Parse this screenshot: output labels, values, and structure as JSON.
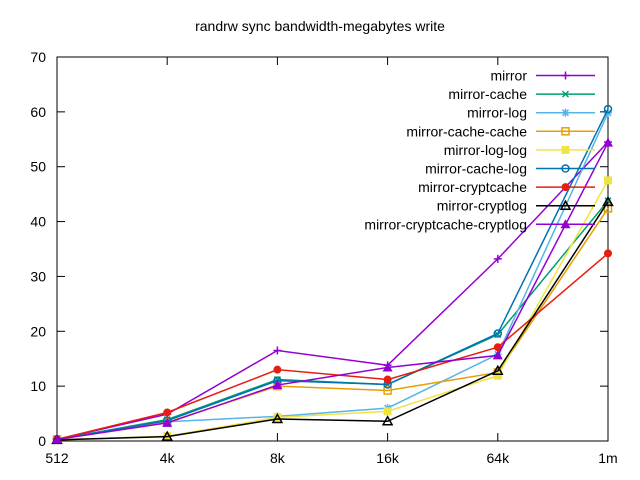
{
  "chart_data": {
    "type": "line",
    "title": "randrw sync bandwidth-megabytes write",
    "xlabel": "",
    "ylabel": "",
    "categories": [
      "512",
      "4k",
      "8k",
      "16k",
      "64k",
      "1m"
    ],
    "yticks": [
      0,
      10,
      20,
      30,
      40,
      50,
      60,
      70
    ],
    "ylim": [
      0,
      70
    ],
    "grid": false,
    "legend_position": "top-right-inside",
    "axis_color": "#000000",
    "background_color": "#ffffff",
    "series": [
      {
        "name": "mirror",
        "color": "#9400d3",
        "marker": "plus",
        "values": [
          0.3,
          4.9,
          16.5,
          13.8,
          33.2,
          54.5
        ]
      },
      {
        "name": "mirror-cache",
        "color": "#009e73",
        "marker": "cross",
        "values": [
          0.3,
          3.9,
          11.2,
          10.3,
          19.4,
          43.8
        ]
      },
      {
        "name": "mirror-log",
        "color": "#56b4e9",
        "marker": "asterisk",
        "values": [
          0.3,
          3.5,
          4.5,
          6.0,
          15.8,
          59.8
        ]
      },
      {
        "name": "mirror-cache-cache",
        "color": "#e69f00",
        "marker": "square-open",
        "values": [
          0.3,
          3.4,
          10.0,
          9.2,
          12.5,
          42.4
        ]
      },
      {
        "name": "mirror-log-log",
        "color": "#f0e442",
        "marker": "square-filled",
        "values": [
          0.2,
          0.9,
          4.3,
          5.4,
          11.9,
          47.5
        ]
      },
      {
        "name": "mirror-cache-log",
        "color": "#0072b2",
        "marker": "circle-open",
        "values": [
          0.3,
          3.7,
          11.0,
          10.3,
          19.6,
          60.5
        ]
      },
      {
        "name": "mirror-cryptcache",
        "color": "#e51e10",
        "marker": "circle-filled",
        "values": [
          0.3,
          5.2,
          13.0,
          11.2,
          17.1,
          34.2
        ]
      },
      {
        "name": "mirror-cryptlog",
        "color": "#000000",
        "marker": "triangle-open",
        "values": [
          0.2,
          0.8,
          4.0,
          3.6,
          12.8,
          43.6
        ]
      },
      {
        "name": "mirror-cryptcache-cryptlog",
        "color": "#9400d3",
        "marker": "triangle-filled",
        "values": [
          0.3,
          3.3,
          10.2,
          13.4,
          15.6,
          54.4
        ]
      }
    ]
  }
}
